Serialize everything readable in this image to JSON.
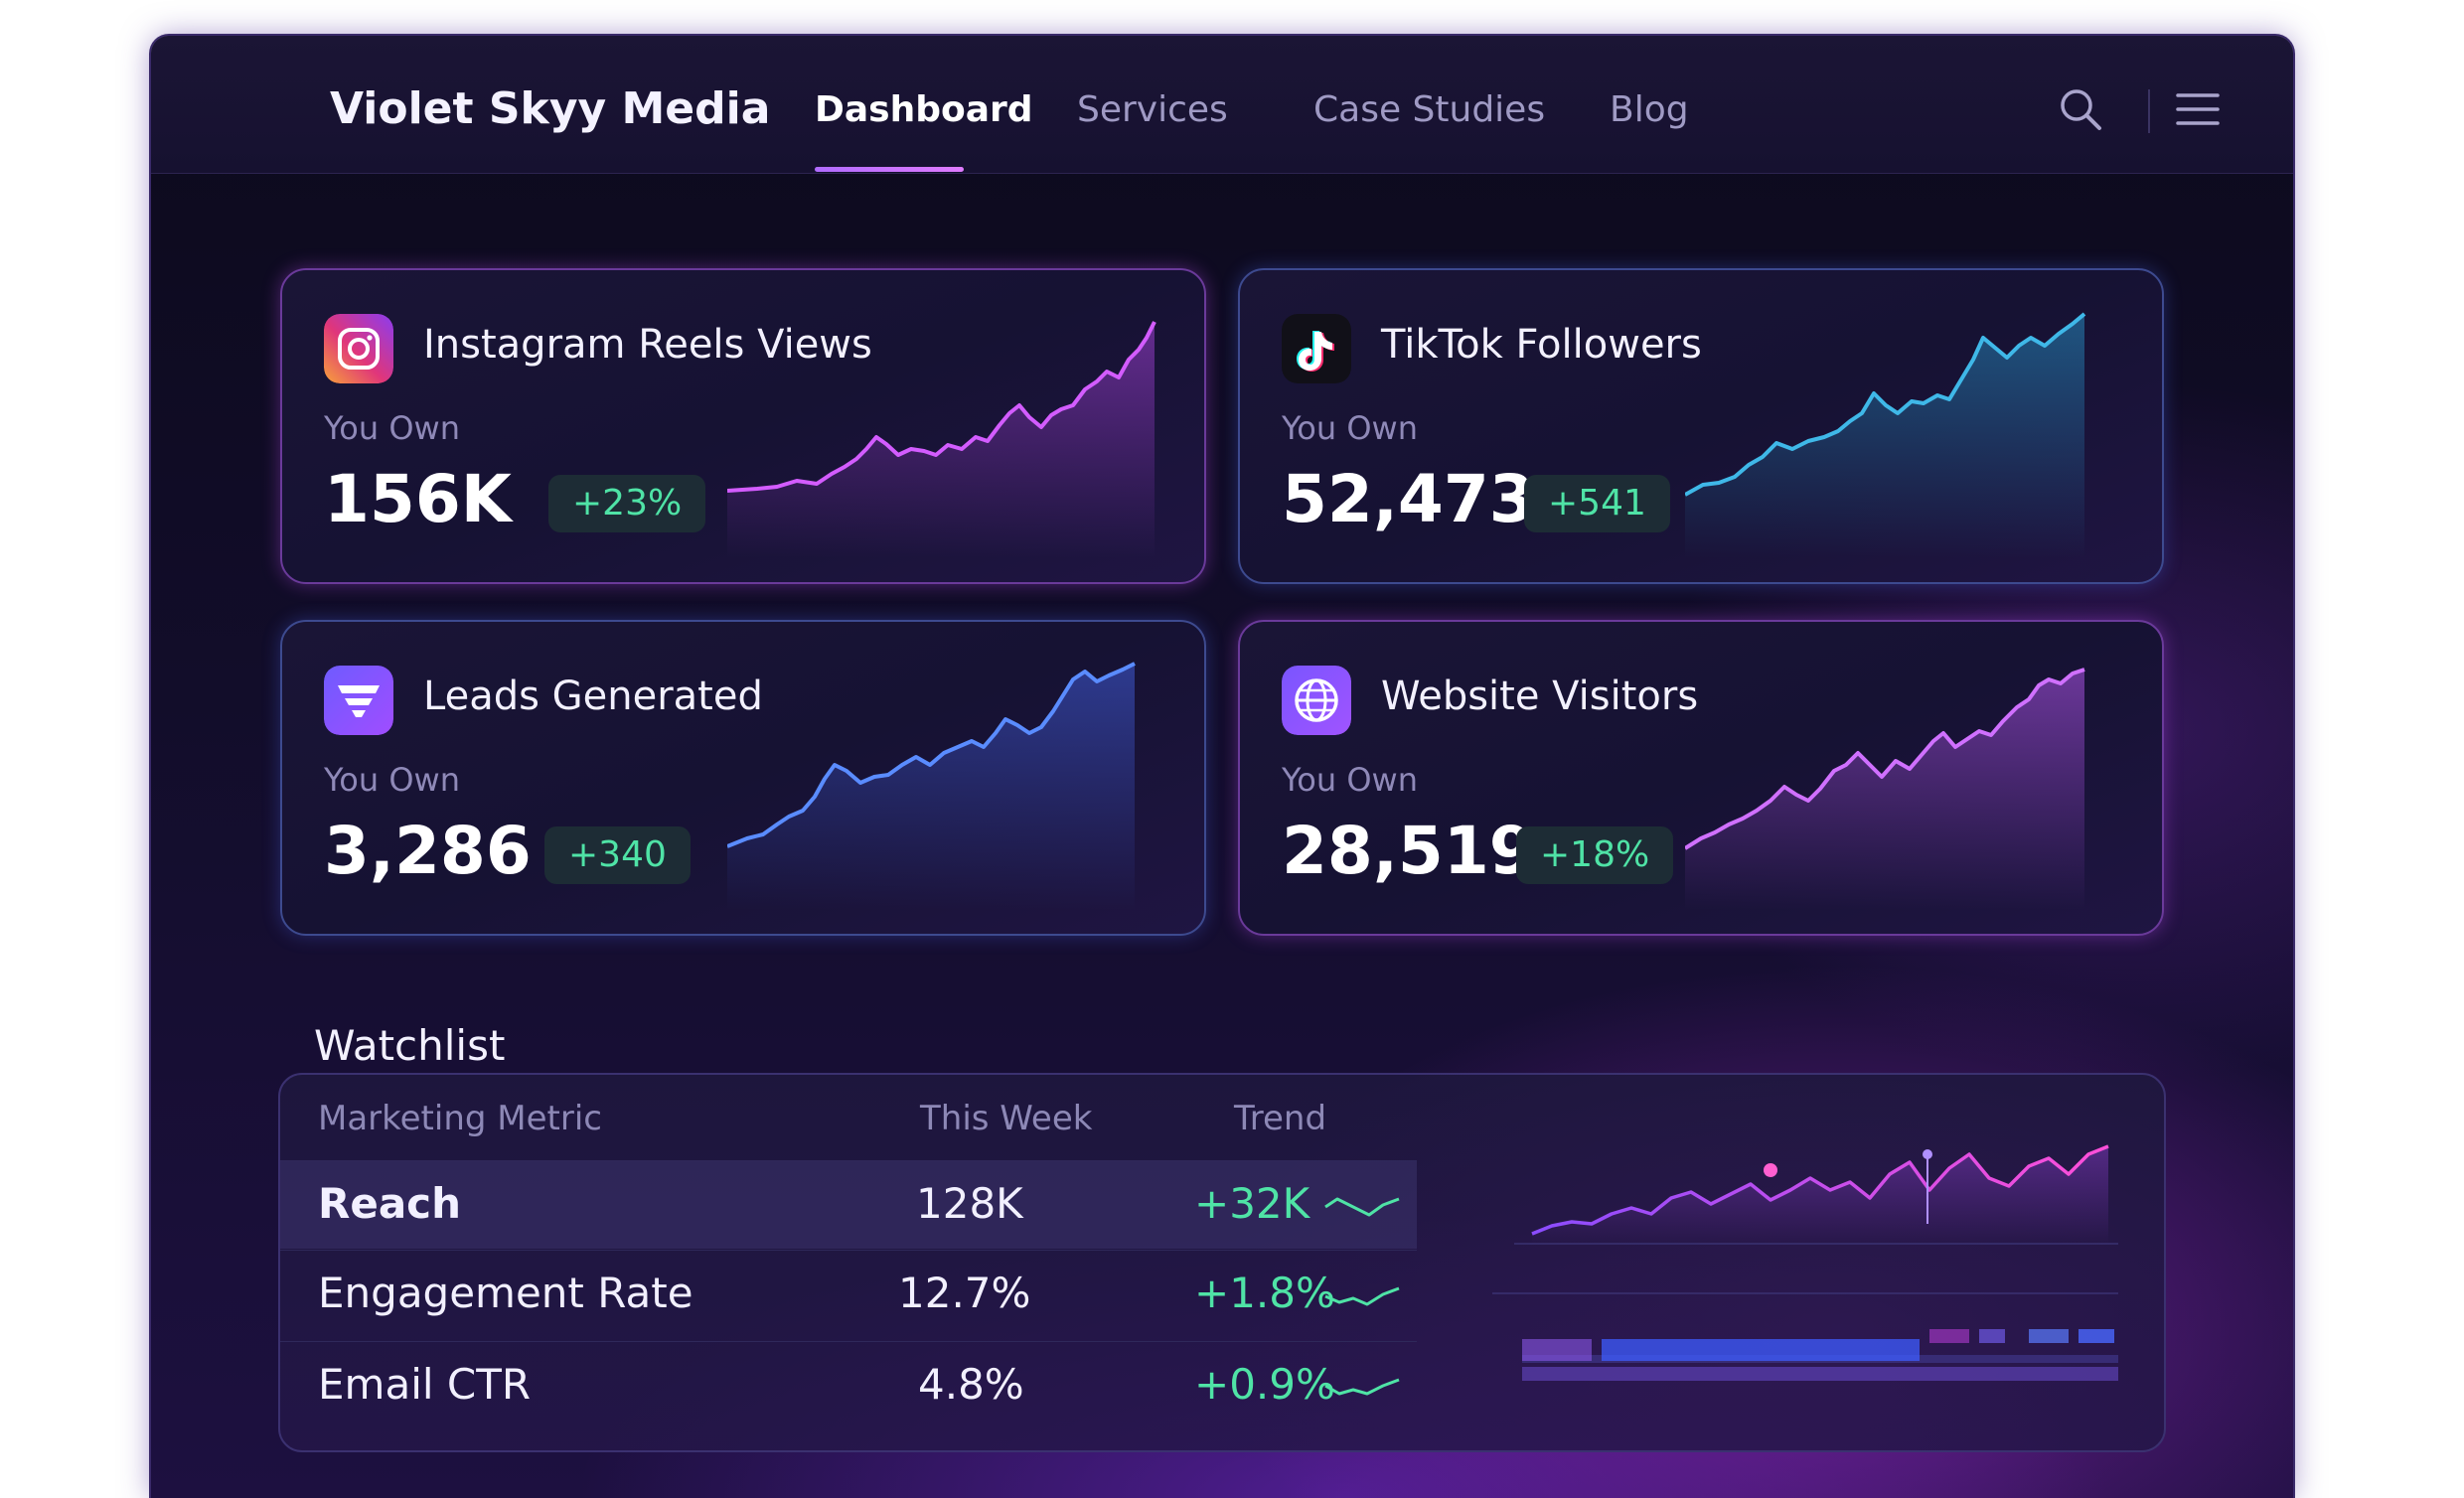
{
  "nav": {
    "brand": "Violet Skyy Media",
    "items": [
      {
        "label": "Dashboard",
        "active": true
      },
      {
        "label": "Services",
        "active": false
      },
      {
        "label": "Case Studies",
        "active": false
      },
      {
        "label": "Blog",
        "active": false
      }
    ],
    "search_icon": "search-icon",
    "menu_icon": "hamburger-menu-icon"
  },
  "cards": [
    {
      "title": "Instagram Reels Views",
      "sub": "You Own",
      "value": "156K",
      "change": "+23%",
      "icon": "instagram-icon",
      "color": "#d35cff"
    },
    {
      "title": "TikTok Followers",
      "sub": "You Own",
      "value": "52,473",
      "change": "+541",
      "icon": "tiktok-icon",
      "color": "#3fb8e8"
    },
    {
      "title": "Leads Generated",
      "sub": "You Own",
      "value": "3,286",
      "change": "+340",
      "icon": "funnel-icon",
      "color": "#5a8cff"
    },
    {
      "title": "Website Visitors",
      "sub": "You Own",
      "value": "28,519",
      "change": "+18%",
      "icon": "globe-icon",
      "color": "#d070ff"
    }
  ],
  "watchlist": {
    "title": "Watchlist",
    "columns": [
      "Marketing Metric",
      "This Week",
      "Trend"
    ],
    "rows": [
      {
        "metric": "Reach",
        "week": "128K",
        "trend": "+32K"
      },
      {
        "metric": "Engagement Rate",
        "week": "12.7%",
        "trend": "+1.8%"
      },
      {
        "metric": "Email CTR",
        "week": "4.8%",
        "trend": "+0.9%"
      }
    ]
  },
  "colors": {
    "accent": "#b06bff",
    "positive": "#4fe3a6"
  }
}
